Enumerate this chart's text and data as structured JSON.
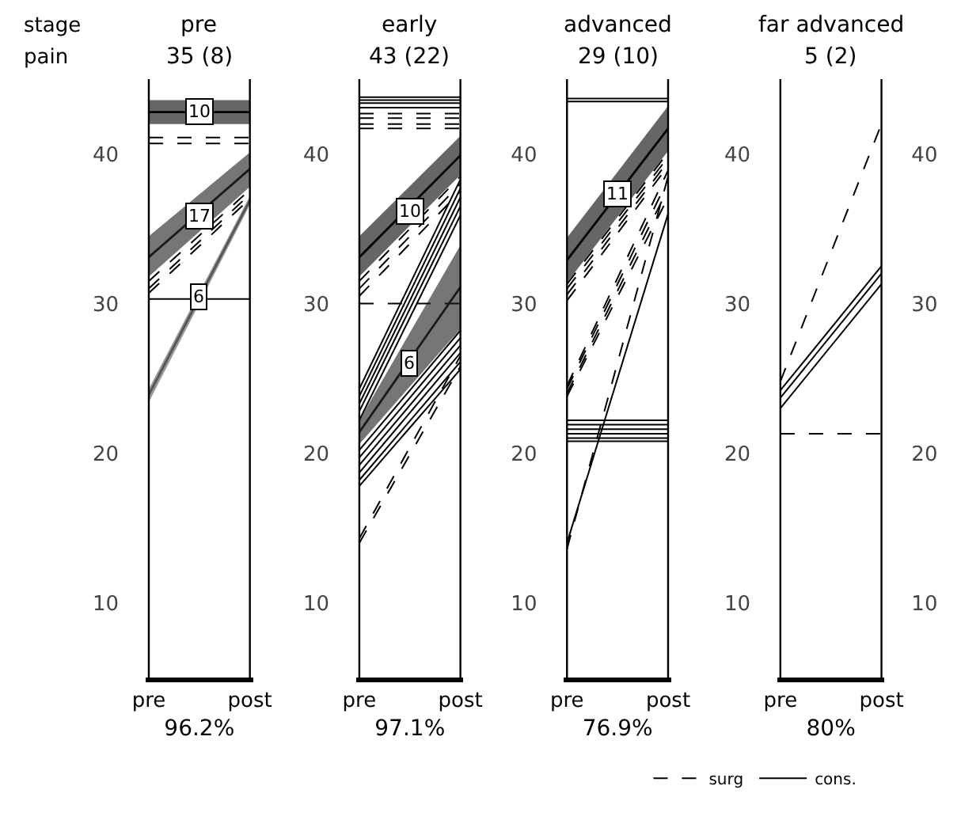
{
  "chart_data": [
    {
      "type": "line",
      "title": "pre",
      "subtitle": "35 (8)",
      "xlabel": "96.2%",
      "categories": [
        "pre",
        "post"
      ],
      "ref_lines": [
        {
          "axis": "x",
          "value": "pre"
        },
        {
          "axis": "x",
          "value": "post"
        }
      ],
      "ylim": [
        5,
        45
      ],
      "yticks": [
        10,
        20,
        30,
        40
      ],
      "grid": false,
      "legend": false,
      "marker": "none",
      "annotations": [
        "stage",
        "pain",
        {
          "text": "10",
          "y": 42.8
        },
        {
          "text": "17",
          "y": 35.8
        },
        {
          "text": "6",
          "y": 30.4
        }
      ],
      "series": [
        {
          "color": "#000000",
          "line_style": "solid",
          "values": [
            42.8,
            42.8
          ],
          "lower": [
            42.0,
            42.0
          ],
          "upper": [
            43.6,
            43.6
          ]
        },
        {
          "color": "#000000",
          "line_style": "dashed",
          "values": [
            41.1,
            41.1
          ]
        },
        {
          "color": "#000000",
          "line_style": "dashed",
          "values": [
            40.7,
            40.7
          ]
        },
        {
          "color": "#1a1a1a",
          "line_style": "solid",
          "values": [
            33.1,
            39.0
          ],
          "lower": [
            31.8,
            37.8
          ],
          "upper": [
            34.5,
            40.1
          ]
        },
        {
          "color": "#000000",
          "line_style": "dashed",
          "values": [
            31.5,
            37.6
          ]
        },
        {
          "color": "#000000",
          "line_style": "dashed",
          "values": [
            31.0,
            37.3
          ]
        },
        {
          "color": "#000000",
          "line_style": "dashed",
          "values": [
            30.7,
            37.0
          ]
        },
        {
          "color": "#000000",
          "line_style": "solid",
          "values": [
            30.3,
            30.3
          ]
        },
        {
          "color": "#555555",
          "line_style": "solid",
          "values": [
            23.9,
            36.9
          ],
          "lower": [
            23.4,
            36.6
          ],
          "upper": [
            24.3,
            37.2
          ]
        }
      ]
    },
    {
      "type": "line",
      "title": "early",
      "subtitle": "43 (22)",
      "xlabel": "97.1%",
      "categories": [
        "pre",
        "post"
      ],
      "ref_lines": [
        {
          "axis": "x",
          "value": "pre"
        },
        {
          "axis": "x",
          "value": "post"
        }
      ],
      "ylim": [
        5,
        45
      ],
      "yticks": [
        10,
        20,
        30,
        40
      ],
      "grid": false,
      "legend": false,
      "marker": "none",
      "annotations": [
        {
          "text": "10",
          "y": 36.2
        },
        {
          "text": "6",
          "y": 26.0
        }
      ],
      "series": [
        {
          "color": "#000000",
          "line_style": "solid",
          "values": [
            43.8,
            43.8
          ]
        },
        {
          "color": "#000000",
          "line_style": "solid",
          "values": [
            43.6,
            43.6
          ]
        },
        {
          "color": "#000000",
          "line_style": "solid",
          "values": [
            43.4,
            43.4
          ]
        },
        {
          "color": "#000000",
          "line_style": "solid",
          "values": [
            43.1,
            43.1
          ]
        },
        {
          "color": "#000000",
          "line_style": "dashed",
          "values": [
            42.7,
            42.7
          ]
        },
        {
          "color": "#000000",
          "line_style": "dashed",
          "values": [
            42.4,
            42.4
          ]
        },
        {
          "color": "#000000",
          "line_style": "dashed",
          "values": [
            42.0,
            42.0
          ]
        },
        {
          "color": "#000000",
          "line_style": "dashed",
          "values": [
            41.7,
            41.7
          ]
        },
        {
          "color": "#000000",
          "line_style": "solid",
          "values": [
            33.1,
            39.9
          ],
          "lower": [
            31.8,
            38.6
          ],
          "upper": [
            34.5,
            41.2
          ]
        },
        {
          "color": "#000000",
          "line_style": "dashed",
          "values": [
            31.5,
            38.5
          ]
        },
        {
          "color": "#000000",
          "line_style": "dashed",
          "values": [
            31.0,
            38.0
          ]
        },
        {
          "color": "#000000",
          "line_style": "dashed",
          "values": [
            30.5,
            37.5
          ]
        },
        {
          "color": "#000000",
          "line_style": "dashed",
          "values": [
            30.0,
            30.0
          ]
        },
        {
          "color": "#000000",
          "line_style": "solid",
          "values": [
            24.3,
            38.3
          ]
        },
        {
          "color": "#000000",
          "line_style": "solid",
          "values": [
            23.8,
            37.7
          ]
        },
        {
          "color": "#000000",
          "line_style": "solid",
          "values": [
            23.3,
            37.1
          ]
        },
        {
          "color": "#000000",
          "line_style": "solid",
          "values": [
            22.8,
            36.5
          ]
        },
        {
          "color": "#000000",
          "line_style": "solid",
          "values": [
            22.2,
            35.9
          ]
        },
        {
          "color": "#1a1a1a",
          "line_style": "solid",
          "values": [
            21.4,
            31.1
          ],
          "lower": [
            20.6,
            28.3
          ],
          "upper": [
            22.2,
            33.9
          ]
        },
        {
          "color": "#000000",
          "line_style": "solid",
          "values": [
            20.2,
            28.2
          ]
        },
        {
          "color": "#000000",
          "line_style": "solid",
          "values": [
            19.7,
            27.7
          ]
        },
        {
          "color": "#000000",
          "line_style": "solid",
          "values": [
            19.2,
            27.2
          ]
        },
        {
          "color": "#000000",
          "line_style": "solid",
          "values": [
            18.7,
            26.7
          ]
        },
        {
          "color": "#000000",
          "line_style": "solid",
          "values": [
            18.2,
            26.1
          ]
        },
        {
          "color": "#000000",
          "line_style": "solid",
          "values": [
            17.8,
            25.6
          ]
        },
        {
          "color": "#000000",
          "line_style": "dashed",
          "values": [
            14.3,
            26.5
          ]
        },
        {
          "color": "#000000",
          "line_style": "dashed",
          "values": [
            14.0,
            25.8
          ]
        }
      ]
    },
    {
      "type": "line",
      "title": "advanced",
      "subtitle": "29 (10)",
      "xlabel": "76.9%",
      "categories": [
        "pre",
        "post"
      ],
      "ref_lines": [
        {
          "axis": "x",
          "value": "pre"
        },
        {
          "axis": "x",
          "value": "post"
        }
      ],
      "ylim": [
        5,
        45
      ],
      "yticks": [
        10,
        20,
        30,
        40
      ],
      "grid": false,
      "legend": false,
      "marker": "none",
      "annotations": [
        {
          "text": "11",
          "y": 37.3
        }
      ],
      "series": [
        {
          "color": "#000000",
          "line_style": "solid",
          "values": [
            43.7,
            43.7
          ]
        },
        {
          "color": "#000000",
          "line_style": "solid",
          "values": [
            43.5,
            43.5
          ]
        },
        {
          "color": "#000000",
          "line_style": "solid",
          "values": [
            32.9,
            41.7
          ],
          "lower": [
            31.4,
            40.2
          ],
          "upper": [
            34.4,
            43.2
          ]
        },
        {
          "color": "#000000",
          "line_style": "dashed",
          "values": [
            31.3,
            40.1
          ]
        },
        {
          "color": "#000000",
          "line_style": "dashed",
          "values": [
            31.0,
            39.8
          ]
        },
        {
          "color": "#000000",
          "line_style": "dashed",
          "values": [
            30.6,
            39.5
          ]
        },
        {
          "color": "#000000",
          "line_style": "dashed",
          "values": [
            30.2,
            39.2
          ]
        },
        {
          "color": "#000000",
          "line_style": "dashed",
          "values": [
            24.5,
            38.9
          ]
        },
        {
          "color": "#000000",
          "line_style": "dashed",
          "values": [
            24.3,
            38.3
          ]
        },
        {
          "color": "#000000",
          "line_style": "dashed",
          "values": [
            24.0,
            37.7
          ]
        },
        {
          "color": "#000000",
          "line_style": "dashed",
          "values": [
            23.8,
            37.1
          ]
        },
        {
          "color": "#000000",
          "line_style": "solid",
          "values": [
            22.2,
            22.2
          ]
        },
        {
          "color": "#000000",
          "line_style": "solid",
          "values": [
            21.9,
            21.9
          ]
        },
        {
          "color": "#000000",
          "line_style": "solid",
          "values": [
            21.6,
            21.6
          ]
        },
        {
          "color": "#000000",
          "line_style": "solid",
          "values": [
            21.3,
            21.3
          ]
        },
        {
          "color": "#000000",
          "line_style": "solid",
          "values": [
            21.0,
            21.0
          ]
        },
        {
          "color": "#000000",
          "line_style": "solid",
          "values": [
            20.8,
            20.8
          ]
        },
        {
          "color": "#000000",
          "line_style": "solid",
          "values": [
            14.0,
            36.0
          ]
        },
        {
          "color": "#000000",
          "line_style": "dashed",
          "values": [
            13.6,
            38.5
          ]
        }
      ]
    },
    {
      "type": "line",
      "title": "far advanced",
      "subtitle": "5 (2)",
      "xlabel": "80%",
      "categories": [
        "pre",
        "post"
      ],
      "ref_lines": [
        {
          "axis": "x",
          "value": "pre"
        },
        {
          "axis": "x",
          "value": "post"
        }
      ],
      "ylim": [
        5,
        45
      ],
      "yticks": [
        10,
        20,
        30,
        40
      ],
      "y2lim": [
        5,
        45
      ],
      "y2ticks": [
        10,
        20,
        30,
        40
      ],
      "grid": false,
      "legend": "bottom",
      "marker": "none",
      "series": [
        {
          "name": "surg",
          "color": "#000000",
          "line_style": "dashed",
          "values": [
            24.8,
            42.0
          ]
        },
        {
          "name": "cons.",
          "color": "#000000",
          "line_style": "solid",
          "values": [
            24.2,
            32.5
          ]
        },
        {
          "color": "#000000",
          "line_style": "solid",
          "values": [
            23.7,
            32.0
          ]
        },
        {
          "color": "#000000",
          "line_style": "solid",
          "values": [
            23.0,
            31.3
          ]
        },
        {
          "color": "#000000",
          "line_style": "dashed",
          "values": [
            21.3,
            21.3
          ]
        }
      ]
    }
  ]
}
